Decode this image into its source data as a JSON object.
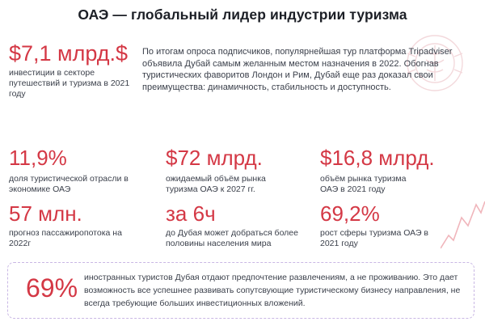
{
  "title": "ОАЭ — глобальный лидер индустрии туризма",
  "intro": "По итогам опроса подписчиков, популярнейшая тур платформа Tripadviser объявила Дубай самым желанным местом назначения в 2022. Обогнав туристических фаворитов Лондон и Рим, Дубай еще раз доказал свои преимущества: динамичность, стабильность и доступность.",
  "stats": [
    {
      "value": "$7,1 млрд.$",
      "desc": "инвестиции в секторе путешествий и туризма в 2021 году"
    },
    {
      "value": "11,9%",
      "desc": "доля туристической отрасли в экономике ОАЭ"
    },
    {
      "value": "$72 млрд.",
      "desc": "ожидаемый объём рынка туризма ОАЭ к 2027 гг."
    },
    {
      "value": "$16,8 млрд.",
      "desc": "объём рынка туризма ОАЭ в 2021 году"
    },
    {
      "value": "57 млн.",
      "desc": "прогноз пассажиропотока на 2022г"
    },
    {
      "value": "за 6ч",
      "desc": "до Дубая может добраться более половины населения мира"
    },
    {
      "value": "69,2%",
      "desc": "рост сферы туризма ОАЭ в 2021 году"
    }
  ],
  "callout": {
    "value": "69%",
    "text": "иностранных туристов Дубая отдают предпочтение развлечениям, а не проживанию. Это дает возможность все успешнее развивать сопутсвующие туристическому бизнесу направления, не всегда требующие больших инвестиционных вложений."
  },
  "colors": {
    "accent": "#d43845",
    "callout_border": "#c9b7e4",
    "text": "#3a3f4a"
  },
  "icons": {
    "watermark": "decorative-seal-icon",
    "trend": "trend-line-icon"
  }
}
